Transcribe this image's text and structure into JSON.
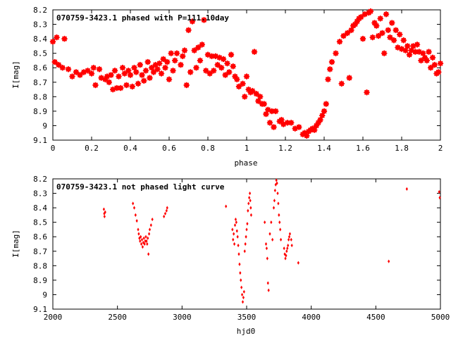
{
  "chart_data": [
    {
      "type": "scatter",
      "title": "070759-3423.1 phased with P=111.10day",
      "xlabel": "phase",
      "ylabel": "I[mag]",
      "xlim": [
        0,
        2
      ],
      "ylim": [
        9.1,
        8.2
      ],
      "y_inverted": true,
      "x_ticks": [
        "0",
        "0.2",
        "0.4",
        "0.6",
        "0.8",
        "1",
        "1.2",
        "1.4",
        "1.6",
        "1.8",
        "2"
      ],
      "y_ticks": [
        "8.2",
        "8.3",
        "8.4",
        "8.5",
        "8.6",
        "8.7",
        "8.8",
        "8.9",
        "9",
        "9.1"
      ],
      "marker": "star",
      "color": "#ff0000",
      "points": [
        [
          0.0,
          8.42
        ],
        [
          0.01,
          8.56
        ],
        [
          0.02,
          8.39
        ],
        [
          0.03,
          8.58
        ],
        [
          0.05,
          8.6
        ],
        [
          0.06,
          8.4
        ],
        [
          0.08,
          8.61
        ],
        [
          0.1,
          8.66
        ],
        [
          0.12,
          8.63
        ],
        [
          0.14,
          8.65
        ],
        [
          0.16,
          8.63
        ],
        [
          0.18,
          8.62
        ],
        [
          0.2,
          8.64
        ],
        [
          0.21,
          8.6
        ],
        [
          0.22,
          8.72
        ],
        [
          0.24,
          8.61
        ],
        [
          0.25,
          8.67
        ],
        [
          0.27,
          8.68
        ],
        [
          0.28,
          8.66
        ],
        [
          0.29,
          8.7
        ],
        [
          0.3,
          8.65
        ],
        [
          0.31,
          8.75
        ],
        [
          0.32,
          8.62
        ],
        [
          0.33,
          8.74
        ],
        [
          0.34,
          8.66
        ],
        [
          0.35,
          8.74
        ],
        [
          0.36,
          8.6
        ],
        [
          0.37,
          8.64
        ],
        [
          0.38,
          8.72
        ],
        [
          0.39,
          8.62
        ],
        [
          0.4,
          8.65
        ],
        [
          0.41,
          8.73
        ],
        [
          0.42,
          8.6
        ],
        [
          0.43,
          8.63
        ],
        [
          0.44,
          8.71
        ],
        [
          0.45,
          8.58
        ],
        [
          0.46,
          8.65
        ],
        [
          0.47,
          8.69
        ],
        [
          0.48,
          8.62
        ],
        [
          0.49,
          8.56
        ],
        [
          0.5,
          8.67
        ],
        [
          0.51,
          8.6
        ],
        [
          0.52,
          8.63
        ],
        [
          0.53,
          8.58
        ],
        [
          0.54,
          8.61
        ],
        [
          0.55,
          8.57
        ],
        [
          0.56,
          8.64
        ],
        [
          0.57,
          8.54
        ],
        [
          0.58,
          8.6
        ],
        [
          0.59,
          8.56
        ],
        [
          0.6,
          8.68
        ],
        [
          0.61,
          8.5
        ],
        [
          0.62,
          8.62
        ],
        [
          0.63,
          8.55
        ],
        [
          0.64,
          8.5
        ],
        [
          0.66,
          8.58
        ],
        [
          0.67,
          8.52
        ],
        [
          0.68,
          8.48
        ],
        [
          0.69,
          8.72
        ],
        [
          0.7,
          8.34
        ],
        [
          0.71,
          8.63
        ],
        [
          0.72,
          8.28
        ],
        [
          0.73,
          8.48
        ],
        [
          0.74,
          8.6
        ],
        [
          0.75,
          8.46
        ],
        [
          0.76,
          8.55
        ],
        [
          0.77,
          8.44
        ],
        [
          0.78,
          8.27
        ],
        [
          0.79,
          8.62
        ],
        [
          0.8,
          8.51
        ],
        [
          0.81,
          8.64
        ],
        [
          0.82,
          8.52
        ],
        [
          0.83,
          8.62
        ],
        [
          0.84,
          8.52
        ],
        [
          0.85,
          8.58
        ],
        [
          0.86,
          8.53
        ],
        [
          0.87,
          8.6
        ],
        [
          0.88,
          8.54
        ],
        [
          0.89,
          8.65
        ],
        [
          0.9,
          8.57
        ],
        [
          0.91,
          8.63
        ],
        [
          0.92,
          8.51
        ],
        [
          0.93,
          8.59
        ],
        [
          0.94,
          8.66
        ],
        [
          0.95,
          8.68
        ],
        [
          0.96,
          8.73
        ],
        [
          0.98,
          8.71
        ],
        [
          0.99,
          8.8
        ],
        [
          1.0,
          8.66
        ],
        [
          1.01,
          8.75
        ],
        [
          1.02,
          8.77
        ],
        [
          1.03,
          8.76
        ],
        [
          1.04,
          8.49
        ],
        [
          1.05,
          8.78
        ],
        [
          1.06,
          8.83
        ],
        [
          1.07,
          8.8
        ],
        [
          1.08,
          8.85
        ],
        [
          1.09,
          8.85
        ],
        [
          1.1,
          8.92
        ],
        [
          1.11,
          8.89
        ],
        [
          1.12,
          8.98
        ],
        [
          1.13,
          8.9
        ],
        [
          1.14,
          9.01
        ],
        [
          1.15,
          8.9
        ],
        [
          1.17,
          8.97
        ],
        [
          1.18,
          8.96
        ],
        [
          1.19,
          8.99
        ],
        [
          1.21,
          8.98
        ],
        [
          1.23,
          8.98
        ],
        [
          1.25,
          9.02
        ],
        [
          1.27,
          9.01
        ],
        [
          1.29,
          9.06
        ],
        [
          1.3,
          9.05
        ],
        [
          1.31,
          9.07
        ],
        [
          1.32,
          9.04
        ],
        [
          1.33,
          9.03
        ],
        [
          1.34,
          9.02
        ],
        [
          1.35,
          9.03
        ],
        [
          1.36,
          9.0
        ],
        [
          1.37,
          8.98
        ],
        [
          1.38,
          8.96
        ],
        [
          1.39,
          8.93
        ],
        [
          1.4,
          8.9
        ],
        [
          1.41,
          8.85
        ],
        [
          1.42,
          8.68
        ],
        [
          1.43,
          8.61
        ],
        [
          1.44,
          8.56
        ],
        [
          1.46,
          8.5
        ],
        [
          1.48,
          8.42
        ],
        [
          1.49,
          8.71
        ],
        [
          1.5,
          8.38
        ],
        [
          1.52,
          8.36
        ],
        [
          1.53,
          8.67
        ],
        [
          1.54,
          8.34
        ],
        [
          1.55,
          8.31
        ],
        [
          1.56,
          8.3
        ],
        [
          1.57,
          8.28
        ],
        [
          1.58,
          8.26
        ],
        [
          1.59,
          8.25
        ],
        [
          1.6,
          8.4
        ],
        [
          1.61,
          8.23
        ],
        [
          1.62,
          8.77
        ],
        [
          1.63,
          8.22
        ],
        [
          1.64,
          8.21
        ],
        [
          1.65,
          8.39
        ],
        [
          1.66,
          8.29
        ],
        [
          1.67,
          8.31
        ],
        [
          1.68,
          8.38
        ],
        [
          1.69,
          8.26
        ],
        [
          1.7,
          8.36
        ],
        [
          1.71,
          8.5
        ],
        [
          1.72,
          8.23
        ],
        [
          1.73,
          8.34
        ],
        [
          1.74,
          8.39
        ],
        [
          1.75,
          8.29
        ],
        [
          1.76,
          8.41
        ],
        [
          1.77,
          8.34
        ],
        [
          1.78,
          8.46
        ],
        [
          1.79,
          8.37
        ],
        [
          1.8,
          8.47
        ],
        [
          1.81,
          8.41
        ],
        [
          1.82,
          8.48
        ],
        [
          1.83,
          8.45
        ],
        [
          1.84,
          8.51
        ],
        [
          1.85,
          8.48
        ],
        [
          1.86,
          8.45
        ],
        [
          1.87,
          8.49
        ],
        [
          1.88,
          8.44
        ],
        [
          1.89,
          8.49
        ],
        [
          1.9,
          8.55
        ],
        [
          1.91,
          8.5
        ],
        [
          1.92,
          8.53
        ],
        [
          1.93,
          8.55
        ],
        [
          1.94,
          8.49
        ],
        [
          1.95,
          8.6
        ],
        [
          1.96,
          8.53
        ],
        [
          1.97,
          8.58
        ],
        [
          1.98,
          8.64
        ],
        [
          1.99,
          8.63
        ],
        [
          2.0,
          8.57
        ]
      ]
    },
    {
      "type": "scatter",
      "title": "070759-3423.1 not phased light curve",
      "xlabel": "hjd0",
      "ylabel": "I[mag]",
      "xlim": [
        2000,
        5000
      ],
      "ylim": [
        9.1,
        8.2
      ],
      "y_inverted": true,
      "x_ticks": [
        "2000",
        "2500",
        "3000",
        "3500",
        "4000",
        "4500",
        "5000"
      ],
      "y_ticks": [
        "8.2",
        "8.3",
        "8.4",
        "8.5",
        "8.6",
        "8.7",
        "8.8",
        "8.9",
        "9",
        "9.1"
      ],
      "marker": "diamond",
      "color": "#ff0000",
      "points": [
        [
          2395,
          8.41
        ],
        [
          2398,
          8.44
        ],
        [
          2400,
          8.46
        ],
        [
          2405,
          8.43
        ],
        [
          2620,
          8.37
        ],
        [
          2630,
          8.4
        ],
        [
          2640,
          8.45
        ],
        [
          2650,
          8.49
        ],
        [
          2660,
          8.55
        ],
        [
          2665,
          8.58
        ],
        [
          2670,
          8.61
        ],
        [
          2675,
          8.63
        ],
        [
          2680,
          8.6
        ],
        [
          2685,
          8.65
        ],
        [
          2690,
          8.62
        ],
        [
          2695,
          8.67
        ],
        [
          2700,
          8.64
        ],
        [
          2705,
          8.61
        ],
        [
          2710,
          8.65
        ],
        [
          2715,
          8.63
        ],
        [
          2720,
          8.6
        ],
        [
          2725,
          8.63
        ],
        [
          2730,
          8.65
        ],
        [
          2735,
          8.61
        ],
        [
          2740,
          8.72
        ],
        [
          2745,
          8.58
        ],
        [
          2750,
          8.55
        ],
        [
          2760,
          8.52
        ],
        [
          2770,
          8.48
        ],
        [
          2860,
          8.46
        ],
        [
          2870,
          8.44
        ],
        [
          2880,
          8.42
        ],
        [
          2885,
          8.4
        ],
        [
          3340,
          8.39
        ],
        [
          3390,
          8.55
        ],
        [
          3395,
          8.62
        ],
        [
          3400,
          8.58
        ],
        [
          3405,
          8.65
        ],
        [
          3410,
          8.52
        ],
        [
          3415,
          8.48
        ],
        [
          3420,
          8.5
        ],
        [
          3425,
          8.56
        ],
        [
          3430,
          8.6
        ],
        [
          3435,
          8.66
        ],
        [
          3440,
          8.72
        ],
        [
          3445,
          8.79
        ],
        [
          3450,
          8.85
        ],
        [
          3455,
          8.9
        ],
        [
          3460,
          8.95
        ],
        [
          3465,
          9.0
        ],
        [
          3470,
          9.05
        ],
        [
          3475,
          9.02
        ],
        [
          3480,
          8.98
        ],
        [
          3485,
          8.7
        ],
        [
          3490,
          8.65
        ],
        [
          3495,
          8.6
        ],
        [
          3500,
          8.55
        ],
        [
          3505,
          8.51
        ],
        [
          3510,
          8.42
        ],
        [
          3515,
          8.37
        ],
        [
          3520,
          8.33
        ],
        [
          3525,
          8.3
        ],
        [
          3528,
          8.35
        ],
        [
          3532,
          8.4
        ],
        [
          3535,
          8.45
        ],
        [
          3640,
          8.5
        ],
        [
          3650,
          8.65
        ],
        [
          3655,
          8.68
        ],
        [
          3660,
          8.75
        ],
        [
          3665,
          8.92
        ],
        [
          3670,
          8.97
        ],
        [
          3680,
          8.58
        ],
        [
          3690,
          8.5
        ],
        [
          3700,
          8.62
        ],
        [
          3710,
          8.4
        ],
        [
          3715,
          8.35
        ],
        [
          3720,
          8.28
        ],
        [
          3725,
          8.24
        ],
        [
          3730,
          8.21
        ],
        [
          3735,
          8.23
        ],
        [
          3740,
          8.3
        ],
        [
          3745,
          8.37
        ],
        [
          3750,
          8.45
        ],
        [
          3755,
          8.5
        ],
        [
          3760,
          8.55
        ],
        [
          3765,
          8.62
        ],
        [
          3790,
          8.68
        ],
        [
          3795,
          8.72
        ],
        [
          3800,
          8.75
        ],
        [
          3805,
          8.73
        ],
        [
          3810,
          8.7
        ],
        [
          3815,
          8.68
        ],
        [
          3820,
          8.66
        ],
        [
          3825,
          8.62
        ],
        [
          3830,
          8.6
        ],
        [
          3835,
          8.58
        ],
        [
          3845,
          8.62
        ],
        [
          3850,
          8.66
        ],
        [
          3900,
          8.78
        ],
        [
          4600,
          8.77
        ],
        [
          4740,
          8.27
        ],
        [
          4990,
          8.29
        ],
        [
          4995,
          8.33
        ]
      ]
    }
  ]
}
